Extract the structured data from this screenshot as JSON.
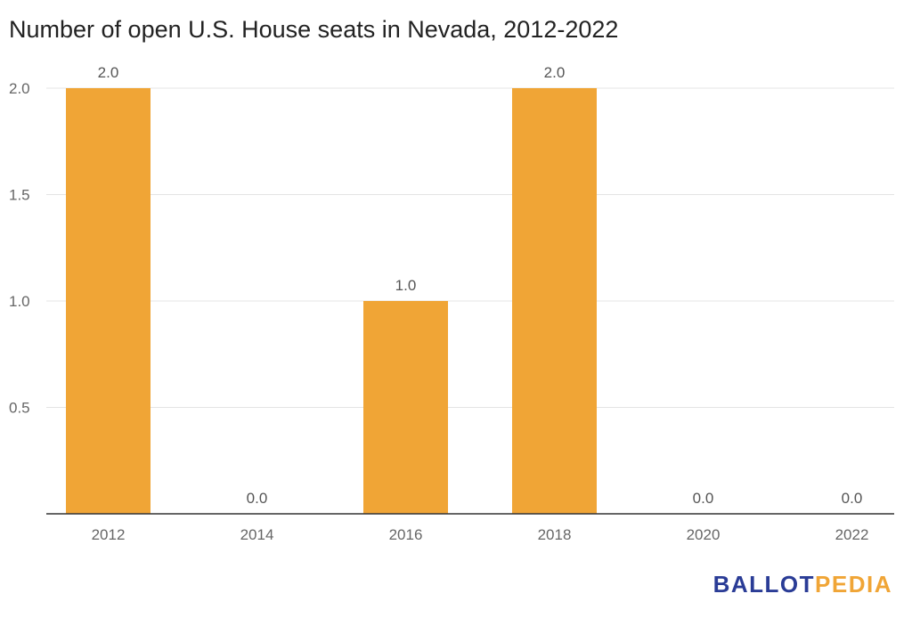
{
  "chart_data": {
    "type": "bar",
    "title": "Number of open U.S. House seats in Nevada, 2012-2022",
    "categories": [
      "2012",
      "2014",
      "2016",
      "2018",
      "2020",
      "2022"
    ],
    "values": [
      2.0,
      0.0,
      1.0,
      2.0,
      0.0,
      0.0
    ],
    "data_labels": [
      "2.0",
      "0.0",
      "1.0",
      "2.0",
      "0.0",
      "0.0"
    ],
    "yticks": [
      "0.5",
      "1.0",
      "1.5",
      "2.0"
    ],
    "ytick_values": [
      0.5,
      1.0,
      1.5,
      2.0
    ],
    "ylim": [
      0,
      2.0
    ],
    "xlabel": "",
    "ylabel": "",
    "grid": true,
    "bar_color": "#f0a536",
    "gridline_color": "#e4e4e4",
    "axis_color": "#333333"
  },
  "branding": {
    "logo_part1": "BALLOT",
    "logo_part2": "PEDIA",
    "logo_color1": "#2a3c96",
    "logo_color2": "#f0a536"
  }
}
